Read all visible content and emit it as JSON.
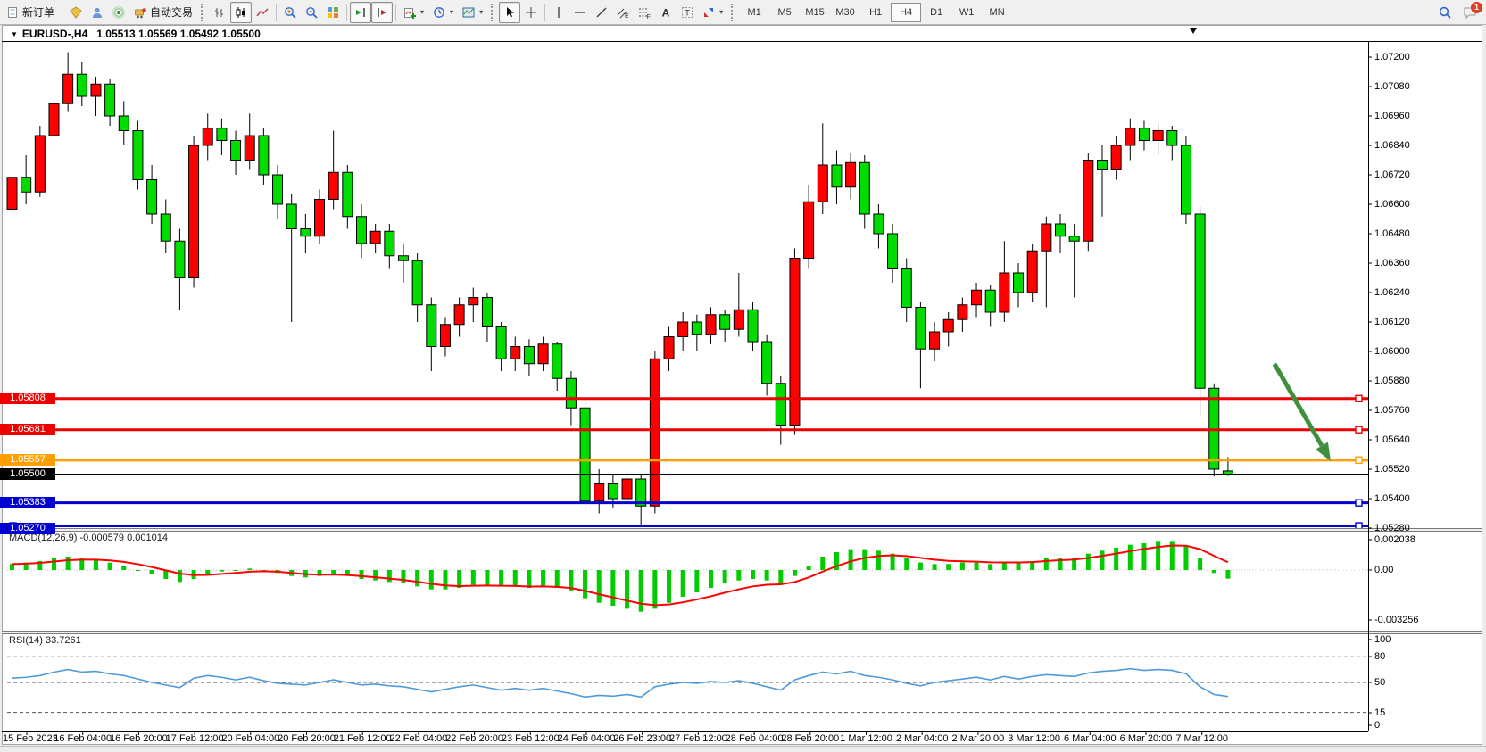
{
  "toolbar": {
    "new_order_label": "新订单",
    "auto_trading_label": "自动交易",
    "notification_badge": "1",
    "groups": [
      {
        "items": [
          {
            "name": "new-order",
            "glyph": "doc",
            "label": "新订单"
          }
        ]
      },
      {
        "items": [
          {
            "name": "market-watch",
            "glyph": "gem"
          },
          {
            "name": "profiles",
            "glyph": "person"
          },
          {
            "name": "strategy-tester",
            "glyph": "signal"
          },
          {
            "name": "auto-trading",
            "glyph": "cart",
            "label": "自动交易"
          }
        ]
      },
      {
        "grip": true,
        "items": [
          {
            "name": "bar-chart-mode",
            "glyph": "bars"
          },
          {
            "name": "candlestick-mode",
            "glyph": "candles",
            "pressed": true
          },
          {
            "name": "line-chart-mode",
            "glyph": "linechart"
          }
        ]
      },
      {
        "items": [
          {
            "name": "zoom-in",
            "glyph": "zoomin"
          },
          {
            "name": "zoom-out",
            "glyph": "zoomout"
          },
          {
            "name": "tile-windows",
            "glyph": "tile"
          }
        ]
      },
      {
        "items": [
          {
            "name": "auto-scroll",
            "glyph": "autoscroll",
            "pressed": true
          },
          {
            "name": "chart-shift",
            "glyph": "shift",
            "pressed": true
          }
        ]
      },
      {
        "items": [
          {
            "name": "new-chart",
            "glyph": "newchart",
            "dropdown": true
          },
          {
            "name": "periods-menu",
            "glyph": "clock",
            "dropdown": true
          },
          {
            "name": "templates-menu",
            "glyph": "template",
            "dropdown": true
          }
        ]
      },
      {
        "grip": true,
        "items": [
          {
            "name": "cursor-tool",
            "glyph": "cursor",
            "pressed": true
          },
          {
            "name": "crosshair-tool",
            "glyph": "crosshair"
          }
        ]
      },
      {
        "items": [
          {
            "name": "vertical-line-tool",
            "glyph": "vline"
          },
          {
            "name": "horizontal-line-tool",
            "glyph": "hline"
          },
          {
            "name": "trendline-tool",
            "glyph": "tline"
          },
          {
            "name": "equidistant-channel-tool",
            "glyph": "channel"
          },
          {
            "name": "fibonacci-tool",
            "glyph": "fibo"
          },
          {
            "name": "text-tool",
            "glyph": "textA"
          },
          {
            "name": "text-label-tool",
            "glyph": "textT"
          },
          {
            "name": "arrows-tool",
            "glyph": "arrows",
            "dropdown": true
          }
        ]
      }
    ],
    "timeframes": {
      "items": [
        "M1",
        "M5",
        "M15",
        "M30",
        "H1",
        "H4",
        "D1",
        "W1",
        "MN"
      ],
      "selected": "H4"
    }
  },
  "chart": {
    "menu_marker": "▼",
    "symbol": "EURUSD-,H4",
    "ohlc": "1.05513 1.05569 1.05492 1.05500"
  },
  "chart_data": {
    "type": "candlestick",
    "symbol": "EURUSD-",
    "timeframe": "H4",
    "title": "EURUSD-,H4 1.05513 1.05569 1.05492 1.05500",
    "current_candle": {
      "open": 1.05513,
      "high": 1.05569,
      "low": 1.05492,
      "close": 1.055
    },
    "colors": {
      "bull": "#fe0000",
      "bear": "#00dc00",
      "wick": "#000000",
      "macd_hist": "#00cc00",
      "macd_signal": "#ff0000",
      "rsi_line": "#4f9ada",
      "level_red": "#ee0000",
      "level_orange": "#ffa000",
      "level_blue": "#0000d0",
      "bid_line": "#000000",
      "arrow": "#3f8f3f"
    },
    "price_axis": {
      "ticks": [
        "1.07200",
        "1.07080",
        "1.06960",
        "1.06840",
        "1.06720",
        "1.06600",
        "1.06480",
        "1.06360",
        "1.06240",
        "1.06120",
        "1.06000",
        "1.05880",
        "1.05760",
        "1.05640",
        "1.05520",
        "1.05400",
        "1.05280"
      ],
      "top_tick_value": 1.072,
      "step": 0.0012
    },
    "hlines": [
      {
        "price": 1.05808,
        "label": "1.05808",
        "color": "#ee0000",
        "kind": "resistance"
      },
      {
        "price": 1.05681,
        "label": "1.05681",
        "color": "#ee0000",
        "kind": "resistance"
      },
      {
        "price": 1.05557,
        "label": "1.05557",
        "color": "#ffa000",
        "kind": "support"
      },
      {
        "price": 1.055,
        "label": "1.05500",
        "color": "#000000",
        "kind": "bid"
      },
      {
        "price": 1.05383,
        "label": "1.05383",
        "color": "#0000d0",
        "kind": "support"
      },
      {
        "price": 1.0527,
        "label": "1.05270",
        "color": "#0000d0",
        "kind": "support"
      }
    ],
    "candles": [
      [
        1.0658,
        1.0676,
        1.0652,
        1.0671
      ],
      [
        1.0671,
        1.068,
        1.066,
        1.0665
      ],
      [
        1.0665,
        1.0692,
        1.0663,
        1.0688
      ],
      [
        1.0688,
        1.0705,
        1.0682,
        1.0701
      ],
      [
        1.0701,
        1.0722,
        1.0698,
        1.0713
      ],
      [
        1.0713,
        1.0718,
        1.07,
        1.0704
      ],
      [
        1.0704,
        1.0712,
        1.0696,
        1.0709
      ],
      [
        1.0709,
        1.0711,
        1.0692,
        1.0696
      ],
      [
        1.0696,
        1.0702,
        1.0684,
        1.069
      ],
      [
        1.069,
        1.0694,
        1.0666,
        1.067
      ],
      [
        1.067,
        1.0676,
        1.0652,
        1.0656
      ],
      [
        1.0656,
        1.0662,
        1.064,
        1.0645
      ],
      [
        1.0645,
        1.065,
        1.0617,
        1.063
      ],
      [
        1.063,
        1.0688,
        1.0626,
        1.0684
      ],
      [
        1.0684,
        1.0697,
        1.0678,
        1.0691
      ],
      [
        1.0691,
        1.0695,
        1.068,
        1.0686
      ],
      [
        1.0686,
        1.069,
        1.0672,
        1.0678
      ],
      [
        1.0678,
        1.0697,
        1.0674,
        1.0688
      ],
      [
        1.0688,
        1.0691,
        1.0668,
        1.0672
      ],
      [
        1.0672,
        1.0676,
        1.0654,
        1.066
      ],
      [
        1.066,
        1.0664,
        1.0612,
        1.065
      ],
      [
        1.065,
        1.0656,
        1.064,
        1.0647
      ],
      [
        1.0647,
        1.0666,
        1.0644,
        1.0662
      ],
      [
        1.0662,
        1.069,
        1.0658,
        1.0673
      ],
      [
        1.0673,
        1.0676,
        1.065,
        1.0655
      ],
      [
        1.0655,
        1.066,
        1.0638,
        1.0644
      ],
      [
        1.0644,
        1.0652,
        1.064,
        1.0649
      ],
      [
        1.0649,
        1.0652,
        1.0634,
        1.0639
      ],
      [
        1.0639,
        1.0644,
        1.0628,
        1.0637
      ],
      [
        1.0637,
        1.064,
        1.0612,
        1.0619
      ],
      [
        1.0619,
        1.0622,
        1.0592,
        1.0602
      ],
      [
        1.0602,
        1.0614,
        1.0598,
        1.0611
      ],
      [
        1.0611,
        1.0622,
        1.0606,
        1.0619
      ],
      [
        1.0619,
        1.0626,
        1.0612,
        1.0622
      ],
      [
        1.0622,
        1.0624,
        1.0604,
        1.061
      ],
      [
        1.061,
        1.0612,
        1.0592,
        1.0597
      ],
      [
        1.0597,
        1.0606,
        1.0592,
        1.0602
      ],
      [
        1.0602,
        1.0605,
        1.059,
        1.0595
      ],
      [
        1.0595,
        1.0606,
        1.0592,
        1.0603
      ],
      [
        1.0603,
        1.0604,
        1.0584,
        1.0589
      ],
      [
        1.0589,
        1.0592,
        1.057,
        1.0577
      ],
      [
        1.0577,
        1.058,
        1.0535,
        1.0539
      ],
      [
        1.0539,
        1.0552,
        1.0534,
        1.0546
      ],
      [
        1.0546,
        1.055,
        1.0536,
        1.054
      ],
      [
        1.054,
        1.0551,
        1.0537,
        1.0548
      ],
      [
        1.0548,
        1.055,
        1.0528,
        1.0537
      ],
      [
        1.0537,
        1.06,
        1.0534,
        1.0597
      ],
      [
        1.0597,
        1.061,
        1.0592,
        1.0606
      ],
      [
        1.0606,
        1.0616,
        1.06,
        1.0612
      ],
      [
        1.0612,
        1.0615,
        1.06,
        1.0607
      ],
      [
        1.0607,
        1.0618,
        1.0603,
        1.0615
      ],
      [
        1.0615,
        1.0617,
        1.0604,
        1.0609
      ],
      [
        1.0609,
        1.0632,
        1.0606,
        1.0617
      ],
      [
        1.0617,
        1.062,
        1.06,
        1.0604
      ],
      [
        1.0604,
        1.0607,
        1.0582,
        1.0587
      ],
      [
        1.0587,
        1.059,
        1.0562,
        1.057
      ],
      [
        1.057,
        1.0642,
        1.0566,
        1.0638
      ],
      [
        1.0638,
        1.0668,
        1.0634,
        1.0661
      ],
      [
        1.0661,
        1.0693,
        1.0656,
        1.0676
      ],
      [
        1.0676,
        1.0682,
        1.066,
        1.0667
      ],
      [
        1.0667,
        1.0681,
        1.0662,
        1.0677
      ],
      [
        1.0677,
        1.068,
        1.065,
        1.0656
      ],
      [
        1.0656,
        1.066,
        1.0642,
        1.0648
      ],
      [
        1.0648,
        1.0652,
        1.0628,
        1.0634
      ],
      [
        1.0634,
        1.0638,
        1.0612,
        1.0618
      ],
      [
        1.0618,
        1.062,
        1.0585,
        1.0601
      ],
      [
        1.0601,
        1.0612,
        1.0596,
        1.0608
      ],
      [
        1.0608,
        1.0616,
        1.0602,
        1.0613
      ],
      [
        1.0613,
        1.0622,
        1.0608,
        1.0619
      ],
      [
        1.0619,
        1.0628,
        1.0614,
        1.0625
      ],
      [
        1.0625,
        1.0627,
        1.061,
        1.0616
      ],
      [
        1.0616,
        1.0645,
        1.0612,
        1.0632
      ],
      [
        1.0632,
        1.0636,
        1.0618,
        1.0624
      ],
      [
        1.0624,
        1.0644,
        1.062,
        1.0641
      ],
      [
        1.0641,
        1.0655,
        1.0618,
        1.0652
      ],
      [
        1.0652,
        1.0656,
        1.064,
        1.0647
      ],
      [
        1.0647,
        1.0652,
        1.0622,
        1.0645
      ],
      [
        1.0645,
        1.0681,
        1.0641,
        1.0678
      ],
      [
        1.0678,
        1.0684,
        1.0655,
        1.0674
      ],
      [
        1.0674,
        1.0688,
        1.067,
        1.0684
      ],
      [
        1.0684,
        1.0695,
        1.0678,
        1.0691
      ],
      [
        1.0691,
        1.0694,
        1.0682,
        1.0686
      ],
      [
        1.0686,
        1.0693,
        1.068,
        1.069
      ],
      [
        1.069,
        1.0692,
        1.0678,
        1.0684
      ],
      [
        1.0684,
        1.0688,
        1.0652,
        1.0656
      ],
      [
        1.0656,
        1.0659,
        1.0574,
        1.0585
      ],
      [
        1.0585,
        1.0587,
        1.0549,
        1.0552
      ],
      [
        1.05513,
        1.05569,
        1.05492,
        1.055
      ]
    ],
    "macd": {
      "label": "MACD(12,26,9)",
      "value_main": "-0.000579",
      "value_signal": "0.001014",
      "axis": [
        "0.002038",
        "0.00",
        "-0.003256"
      ],
      "hist": [
        0.0004,
        0.0005,
        0.0006,
        0.0008,
        0.0009,
        0.0008,
        0.0007,
        0.0005,
        0.0003,
        0.0,
        -0.0003,
        -0.0006,
        -0.0008,
        -0.0006,
        -0.0003,
        -0.0001,
        0.0,
        0.0001,
        0.0,
        -0.0002,
        -0.0004,
        -0.0005,
        -0.0004,
        -0.0003,
        -0.0004,
        -0.0006,
        -0.0007,
        -0.0008,
        -0.0009,
        -0.0011,
        -0.0013,
        -0.0013,
        -0.0012,
        -0.001,
        -0.001,
        -0.0011,
        -0.0011,
        -0.0012,
        -0.0011,
        -0.0012,
        -0.0014,
        -0.0019,
        -0.0022,
        -0.0024,
        -0.0026,
        -0.0028,
        -0.0026,
        -0.0022,
        -0.0018,
        -0.0015,
        -0.0012,
        -0.0009,
        -0.0007,
        -0.0006,
        -0.0007,
        -0.0009,
        -0.0004,
        0.0003,
        0.0009,
        0.0012,
        0.0014,
        0.0014,
        0.0013,
        0.0011,
        0.0008,
        0.0005,
        0.0004,
        0.0004,
        0.0005,
        0.0005,
        0.0004,
        0.0005,
        0.0005,
        0.0006,
        0.0008,
        0.0008,
        0.0008,
        0.0011,
        0.0013,
        0.0015,
        0.0017,
        0.0018,
        0.0019,
        0.0019,
        0.0016,
        0.0008,
        -0.0002,
        -0.000579
      ]
    },
    "rsi": {
      "label": "RSI(14)",
      "value": "33.7261",
      "axis": [
        "100",
        "80",
        "50",
        "15",
        "0"
      ],
      "levels": [
        80,
        50,
        15
      ],
      "values": [
        55,
        56,
        58,
        62,
        65,
        62,
        63,
        60,
        58,
        54,
        50,
        47,
        44,
        55,
        58,
        56,
        53,
        56,
        52,
        49,
        48,
        47,
        50,
        53,
        50,
        47,
        48,
        46,
        45,
        42,
        39,
        42,
        45,
        47,
        44,
        41,
        43,
        41,
        43,
        40,
        37,
        33,
        35,
        34,
        36,
        33,
        45,
        48,
        50,
        49,
        51,
        50,
        52,
        49,
        45,
        41,
        53,
        58,
        62,
        60,
        63,
        58,
        56,
        53,
        49,
        46,
        50,
        52,
        54,
        56,
        53,
        57,
        54,
        57,
        59,
        58,
        57,
        61,
        63,
        64,
        66,
        64,
        65,
        64,
        60,
        45,
        36,
        33.7
      ]
    },
    "x_labels": [
      "15 Feb 2023",
      "16 Feb 04:00",
      "16 Feb 20:00",
      "17 Feb 12:00",
      "20 Feb 04:00",
      "20 Feb 20:00",
      "21 Feb 12:00",
      "22 Feb 04:00",
      "22 Feb 20:00",
      "23 Feb 12:00",
      "24 Feb 04:00",
      "26 Feb 23:00",
      "27 Feb 12:00",
      "28 Feb 04:00",
      "28 Feb 20:00",
      "1 Mar 12:00",
      "2 Mar 04:00",
      "2 Mar 20:00",
      "3 Mar 12:00",
      "6 Mar 04:00",
      "6 Mar 20:00",
      "7 Mar 12:00"
    ],
    "annotation_arrow": {
      "from": [
        1428,
        408
      ],
      "to": [
        1491,
        517
      ],
      "color": "#3f8f3f"
    }
  }
}
